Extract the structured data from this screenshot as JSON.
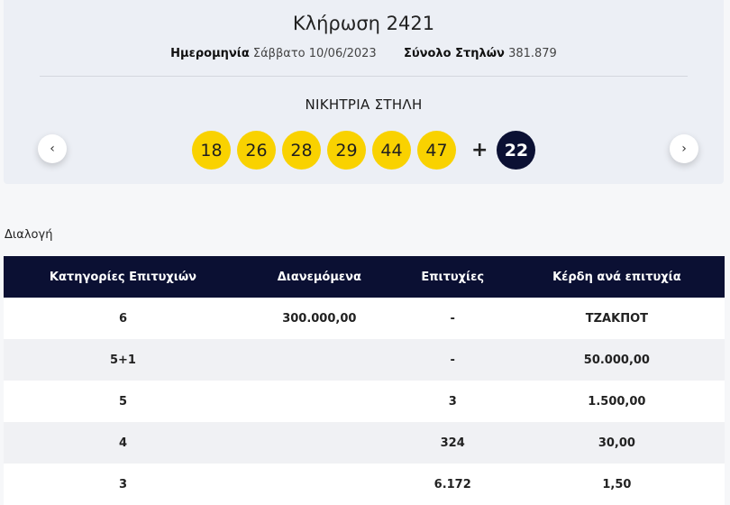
{
  "draw": {
    "title": "Κλήρωση 2421",
    "date_label": "Ημερομηνία",
    "date_value": "Σάββατο 10/06/2023",
    "columns_label": "Σύνολο Στηλών",
    "columns_value": "381.879"
  },
  "winning": {
    "label": "ΝΙΚΗΤΡΙΑ ΣΤΗΛΗ",
    "numbers": [
      "18",
      "26",
      "28",
      "29",
      "44",
      "47"
    ],
    "plus": "+",
    "bonus": "22"
  },
  "nav": {
    "prev": "‹",
    "next": "›"
  },
  "section": {
    "title": "Διαλογή"
  },
  "table": {
    "headers": [
      "Κατηγορίες Επιτυχιών",
      "Διανεμόμενα",
      "Επιτυχίες",
      "Κέρδη ανά επιτυχία"
    ],
    "rows": [
      [
        "6",
        "300.000,00",
        "-",
        "ΤΖΑΚΠΟΤ"
      ],
      [
        "5+1",
        "",
        "-",
        "50.000,00"
      ],
      [
        "5",
        "",
        "3",
        "1.500,00"
      ],
      [
        "4",
        "",
        "324",
        "30,00"
      ],
      [
        "3",
        "",
        "6.172",
        "1,50"
      ]
    ]
  },
  "colors": {
    "ball": "#f9d200",
    "bonus_ball": "#0b1033",
    "header_bg": "#0b1033"
  }
}
